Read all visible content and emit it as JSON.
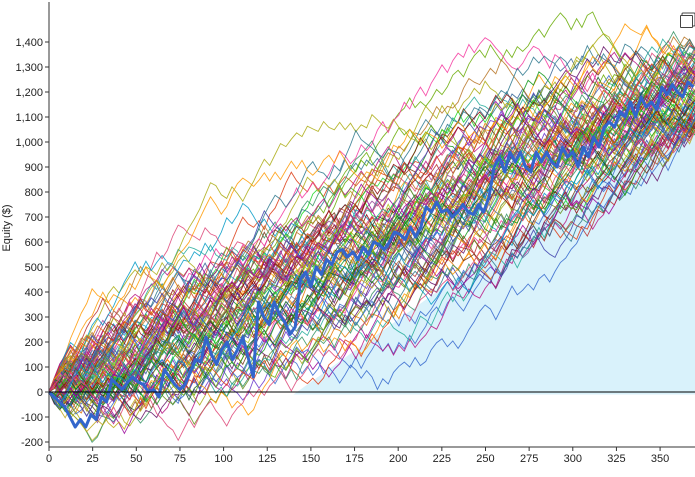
{
  "chart_data": {
    "type": "line",
    "title": "",
    "xlabel": "",
    "ylabel": "Equity ($)",
    "xlim": [
      0,
      370
    ],
    "ylim": [
      -220,
      1560
    ],
    "x_ticks": [
      0,
      25,
      50,
      75,
      100,
      125,
      150,
      175,
      200,
      225,
      250,
      275,
      300,
      325,
      350
    ],
    "x_tick_labels": [
      "0",
      "25",
      "50",
      "75",
      "100",
      "125",
      "150",
      "175",
      "200",
      "225",
      "250",
      "275",
      "300",
      "325",
      "350"
    ],
    "y_ticks": [
      -200,
      -100,
      0,
      100,
      200,
      300,
      400,
      500,
      600,
      700,
      800,
      900,
      1000,
      1100,
      1200,
      1300,
      1400
    ],
    "y_tick_labels": [
      "-200",
      "-100",
      "0",
      "100",
      "200",
      "300",
      "400",
      "500",
      "600",
      "700",
      "800",
      "900",
      "1,000",
      "1,100",
      "1,200",
      "1,300",
      "1,400"
    ],
    "grid": false,
    "zero_line": true,
    "shaded_region": {
      "color": "#d9f2fb",
      "points": [
        [
          140,
          -10
        ],
        [
          370,
          -10
        ],
        [
          370,
          1140
        ]
      ]
    },
    "highlight_series": {
      "color": "#3366cc",
      "points": [
        [
          0,
          0
        ],
        [
          3,
          -20
        ],
        [
          6,
          -40
        ],
        [
          9,
          -60
        ],
        [
          12,
          -100
        ],
        [
          15,
          -140
        ],
        [
          18,
          -110
        ],
        [
          21,
          -140
        ],
        [
          24,
          -90
        ],
        [
          27,
          -110
        ],
        [
          30,
          -20
        ],
        [
          33,
          -40
        ],
        [
          36,
          50
        ],
        [
          39,
          30
        ],
        [
          42,
          10
        ],
        [
          45,
          40
        ],
        [
          48,
          60
        ],
        [
          51,
          40
        ],
        [
          54,
          30
        ],
        [
          57,
          0
        ],
        [
          60,
          10
        ],
        [
          63,
          -20
        ],
        [
          66,
          90
        ],
        [
          69,
          60
        ],
        [
          72,
          30
        ],
        [
          75,
          10
        ],
        [
          78,
          30
        ],
        [
          81,
          80
        ],
        [
          84,
          130
        ],
        [
          87,
          120
        ],
        [
          90,
          220
        ],
        [
          93,
          150
        ],
        [
          96,
          110
        ],
        [
          99,
          170
        ],
        [
          102,
          200
        ],
        [
          105,
          130
        ],
        [
          108,
          170
        ],
        [
          111,
          220
        ],
        [
          114,
          140
        ],
        [
          117,
          60
        ],
        [
          120,
          360
        ],
        [
          123,
          300
        ],
        [
          126,
          270
        ],
        [
          129,
          360
        ],
        [
          132,
          310
        ],
        [
          135,
          280
        ],
        [
          138,
          230
        ],
        [
          141,
          260
        ],
        [
          144,
          450
        ],
        [
          147,
          480
        ],
        [
          150,
          420
        ],
        [
          153,
          500
        ],
        [
          156,
          470
        ],
        [
          159,
          530
        ],
        [
          162,
          510
        ],
        [
          165,
          560
        ],
        [
          168,
          570
        ],
        [
          171,
          540
        ],
        [
          174,
          560
        ],
        [
          177,
          530
        ],
        [
          180,
          580
        ],
        [
          183,
          550
        ],
        [
          186,
          600
        ],
        [
          189,
          590
        ],
        [
          192,
          570
        ],
        [
          195,
          600
        ],
        [
          198,
          640
        ],
        [
          201,
          630
        ],
        [
          204,
          610
        ],
        [
          207,
          660
        ],
        [
          210,
          620
        ],
        [
          213,
          660
        ],
        [
          216,
          740
        ],
        [
          219,
          720
        ],
        [
          222,
          760
        ],
        [
          225,
          720
        ],
        [
          228,
          730
        ],
        [
          231,
          700
        ],
        [
          234,
          720
        ],
        [
          237,
          750
        ],
        [
          240,
          720
        ],
        [
          243,
          710
        ],
        [
          246,
          750
        ],
        [
          249,
          720
        ],
        [
          252,
          780
        ],
        [
          255,
          900
        ],
        [
          258,
          940
        ],
        [
          261,
          880
        ],
        [
          264,
          960
        ],
        [
          267,
          920
        ],
        [
          270,
          960
        ],
        [
          273,
          900
        ],
        [
          276,
          880
        ],
        [
          279,
          960
        ],
        [
          282,
          920
        ],
        [
          285,
          960
        ],
        [
          288,
          920
        ],
        [
          291,
          900
        ],
        [
          294,
          980
        ],
        [
          297,
          940
        ],
        [
          300,
          960
        ],
        [
          303,
          900
        ],
        [
          306,
          980
        ],
        [
          309,
          940
        ],
        [
          312,
          1020
        ],
        [
          315,
          980
        ],
        [
          318,
          1060
        ],
        [
          321,
          1080
        ],
        [
          324,
          1060
        ],
        [
          327,
          1120
        ],
        [
          330,
          1100
        ],
        [
          333,
          1160
        ],
        [
          336,
          1100
        ],
        [
          339,
          1180
        ],
        [
          342,
          1140
        ],
        [
          345,
          1160
        ],
        [
          348,
          1130
        ],
        [
          351,
          1220
        ],
        [
          354,
          1190
        ],
        [
          357,
          1230
        ],
        [
          360,
          1200
        ],
        [
          363,
          1180
        ],
        [
          366,
          1240
        ],
        [
          369,
          1220
        ]
      ]
    },
    "simulations": {
      "count": 100,
      "steps": 370,
      "mean_final": 1200,
      "colors": [
        "#3366cc",
        "#dc3912",
        "#ff9900",
        "#109618",
        "#990099",
        "#0099c6",
        "#dd4477",
        "#66aa00",
        "#b82e2e",
        "#316395",
        "#994499",
        "#22aa99",
        "#aaaa11",
        "#6633cc",
        "#e67300",
        "#8b0707",
        "#651067",
        "#329262",
        "#5574a6",
        "#3b3eac",
        "#b77322",
        "#16d620",
        "#b91383",
        "#f4359e",
        "#9c5935",
        "#a9c413",
        "#2a778d",
        "#668d1c",
        "#bea413",
        "#0c5922",
        "#743411"
      ]
    }
  }
}
